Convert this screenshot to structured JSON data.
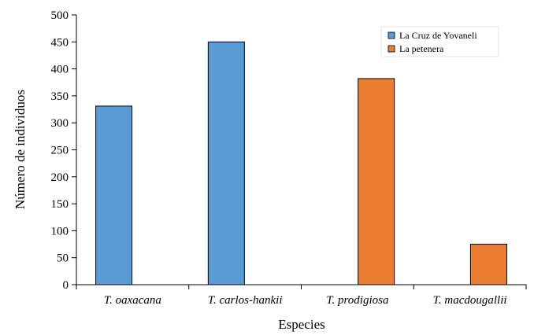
{
  "chart_data": {
    "type": "bar",
    "categories": [
      "T. oaxacana",
      "T. carlos-hankii",
      "T. prodigiosa",
      "T. macdougallii"
    ],
    "series": [
      {
        "name": "La Cruz de Yovaneli",
        "color": "#5b9bd5",
        "values": [
          331,
          450,
          null,
          null
        ]
      },
      {
        "name": "La petenera",
        "color": "#ed7d31",
        "values": [
          null,
          null,
          382,
          75
        ]
      }
    ],
    "xlabel": "Especies",
    "ylabel": "Número de individuos",
    "ylim": [
      0,
      500
    ],
    "yticks": [
      0,
      50,
      100,
      150,
      200,
      250,
      300,
      350,
      400,
      450,
      500
    ],
    "grid": false,
    "legend_position": "top-right"
  }
}
